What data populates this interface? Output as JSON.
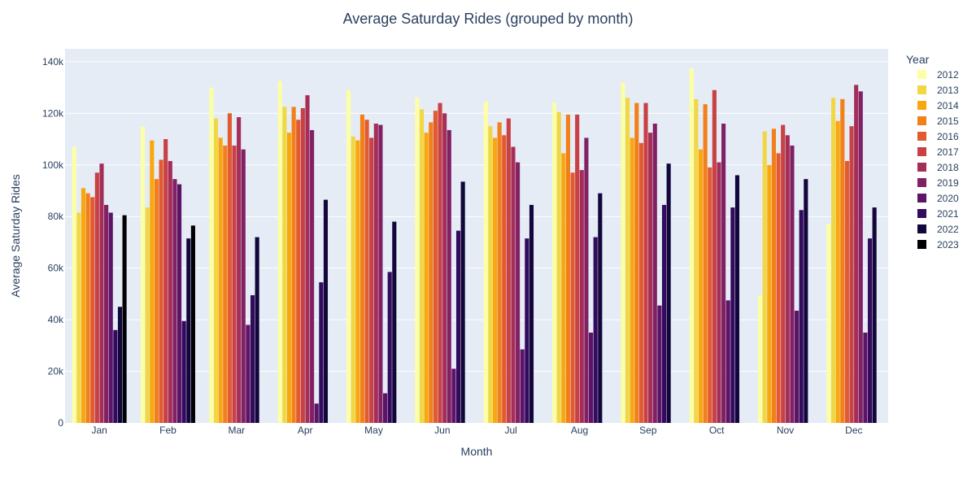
{
  "chart_data": {
    "type": "bar",
    "title": "Average Saturday Rides (grouped by month)",
    "xlabel": "Month",
    "ylabel": "Average Saturday Rides",
    "ylim": [
      0,
      145000
    ],
    "y_ticks": [
      0,
      20000,
      40000,
      60000,
      80000,
      100000,
      120000,
      140000
    ],
    "y_tick_labels": [
      "0",
      "20k",
      "40k",
      "60k",
      "80k",
      "100k",
      "120k",
      "140k"
    ],
    "grid": true,
    "legend_title": "Year",
    "legend_position": "right",
    "categories": [
      "Jan",
      "Feb",
      "Mar",
      "Apr",
      "May",
      "Jun",
      "Jul",
      "Aug",
      "Sep",
      "Oct",
      "Nov",
      "Dec"
    ],
    "series": [
      {
        "name": "2012",
        "color": "#fcffa4",
        "values": [
          107000,
          115000,
          130000,
          132500,
          129000,
          126000,
          124500,
          124000,
          132000,
          137500,
          49500,
          77000
        ]
      },
      {
        "name": "2013",
        "color": "#f1d744",
        "values": [
          81500,
          83500,
          118000,
          122500,
          111000,
          121500,
          115000,
          120500,
          126000,
          125500,
          113000,
          126000
        ]
      },
      {
        "name": "2014",
        "color": "#f9a70e",
        "values": [
          91000,
          109500,
          110500,
          112500,
          109500,
          112500,
          110500,
          104500,
          110500,
          106000,
          100000,
          117000
        ]
      },
      {
        "name": "2015",
        "color": "#f2801a",
        "values": [
          89000,
          94500,
          107500,
          122500,
          119500,
          116500,
          116500,
          119500,
          124000,
          123500,
          114000,
          125500
        ]
      },
      {
        "name": "2016",
        "color": "#e25b30",
        "values": [
          87500,
          102000,
          120000,
          117500,
          117500,
          121000,
          111500,
          97000,
          108500,
          99000,
          104500,
          101500
        ]
      },
      {
        "name": "2017",
        "color": "#c84145",
        "values": [
          97000,
          110000,
          107500,
          122000,
          110500,
          124000,
          118000,
          119500,
          124000,
          129000,
          115500,
          115000
        ]
      },
      {
        "name": "2018",
        "color": "#a52e59",
        "values": [
          100500,
          101500,
          118500,
          127000,
          116000,
          120000,
          107000,
          98000,
          112500,
          101000,
          111500,
          131000
        ]
      },
      {
        "name": "2019",
        "color": "#812164",
        "values": [
          84500,
          94500,
          106000,
          113500,
          115500,
          113500,
          101000,
          110500,
          116000,
          116000,
          107500,
          128500
        ]
      },
      {
        "name": "2020",
        "color": "#5d1466",
        "values": [
          81500,
          92500,
          38000,
          7500,
          11500,
          21000,
          28500,
          35000,
          45500,
          47500,
          43500,
          35000
        ]
      },
      {
        "name": "2021",
        "color": "#330a5e",
        "values": [
          36000,
          39500,
          49500,
          54500,
          58500,
          74500,
          71500,
          72000,
          84500,
          83500,
          82500,
          71500
        ]
      },
      {
        "name": "2022",
        "color": "#13063b",
        "values": [
          45000,
          71500,
          72000,
          86500,
          78000,
          93500,
          84500,
          89000,
          100500,
          96000,
          94500,
          83500
        ]
      },
      {
        "name": "2023",
        "color": "#000004",
        "values": [
          80500,
          76500,
          null,
          null,
          null,
          null,
          null,
          null,
          null,
          null,
          null,
          null
        ]
      }
    ]
  }
}
